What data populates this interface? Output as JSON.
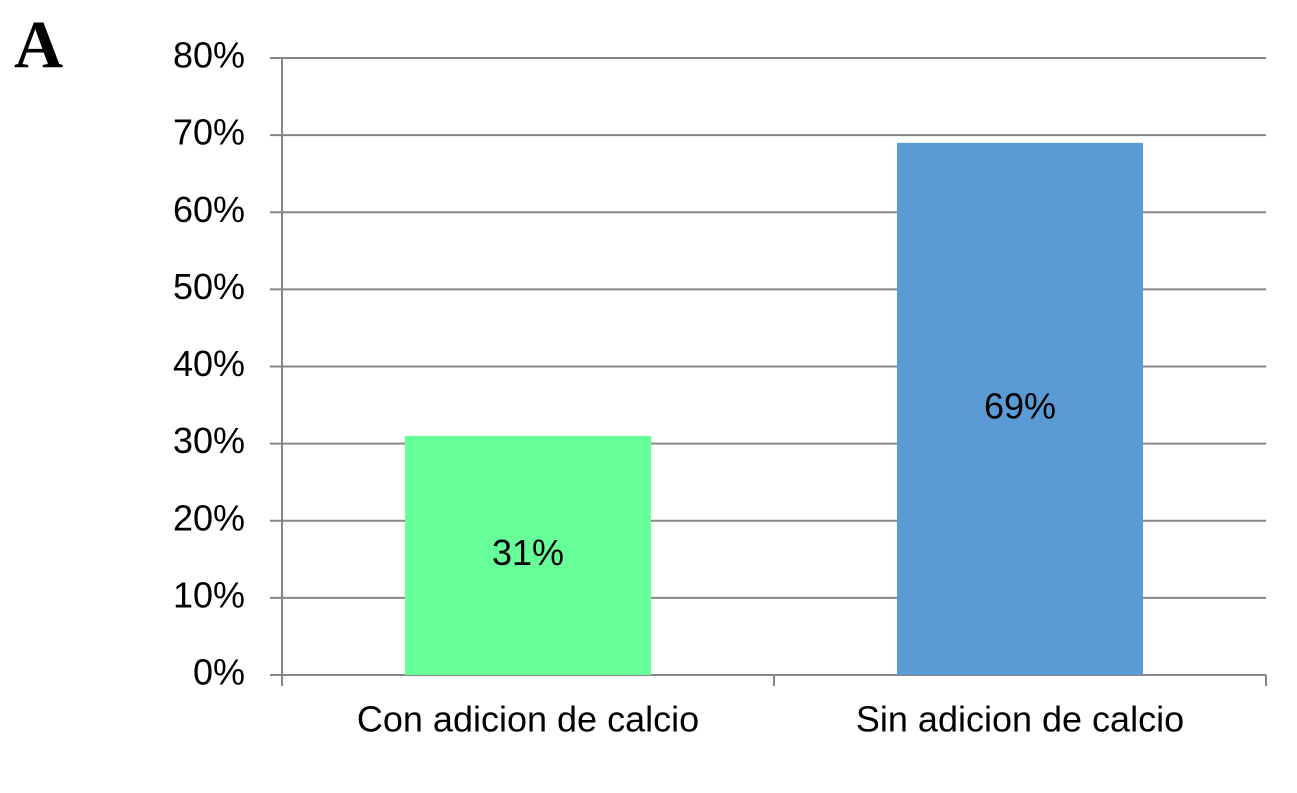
{
  "chart_data": {
    "type": "bar",
    "panel_label": "A",
    "categories": [
      "Con adicion de calcio",
      "Sin adicion de calcio"
    ],
    "values": [
      31,
      69
    ],
    "value_labels": [
      "31%",
      "69%"
    ],
    "colors": [
      "#66ff99",
      "#5b9bd5"
    ],
    "ylim": [
      0,
      80
    ],
    "yticks": [
      {
        "value": 0,
        "label": "0%"
      },
      {
        "value": 10,
        "label": "10%"
      },
      {
        "value": 20,
        "label": "20%"
      },
      {
        "value": 30,
        "label": "30%"
      },
      {
        "value": 40,
        "label": "40%"
      },
      {
        "value": 50,
        "label": "50%"
      },
      {
        "value": 60,
        "label": "60%"
      },
      {
        "value": 70,
        "label": "70%"
      },
      {
        "value": 80,
        "label": "80%"
      }
    ],
    "grid": true
  }
}
